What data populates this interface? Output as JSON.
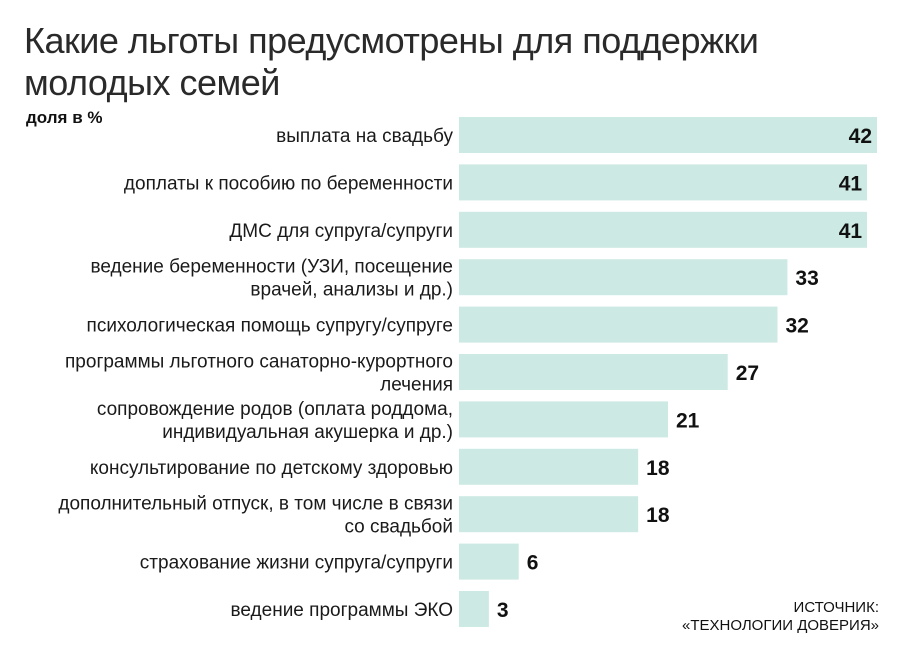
{
  "title": "Какие льготы предусмотрены для поддержки молодых семей",
  "unit_label": "доля в %",
  "source": {
    "line1": "ИСТОЧНИК:",
    "line2": "«ТЕХНОЛОГИИ ДОВЕРИЯ»"
  },
  "colors": {
    "bar": "#cde9e3",
    "text": "#1a1a1a"
  },
  "chart_data": {
    "type": "bar",
    "orientation": "horizontal",
    "title": "Какие льготы предусмотрены для поддержки молодых семей",
    "ylabel": "доля в %",
    "xlim": [
      0,
      42
    ],
    "grid": false,
    "categories": [
      [
        "выплата на свадьбу"
      ],
      [
        "доплаты к пособию по беременности"
      ],
      [
        "ДМС для супруга/супруги"
      ],
      [
        "ведение беременности (УЗИ, посещение",
        "врачей, анализы и др.)"
      ],
      [
        "психологическая помощь супругу/супруге"
      ],
      [
        "программы льготного санаторно-курортного",
        "лечения"
      ],
      [
        "сопровождение родов (оплата роддома,",
        "индивидуальная акушерка и др.)"
      ],
      [
        "консультирование по детскому здоровью"
      ],
      [
        "дополнительный отпуск, в том числе в связи",
        "со свадьбой"
      ],
      [
        "страхование жизни супруга/супруги"
      ],
      [
        "ведение программы ЭКО"
      ]
    ],
    "values": [
      42,
      41,
      41,
      33,
      32,
      27,
      21,
      18,
      18,
      6,
      3
    ]
  }
}
